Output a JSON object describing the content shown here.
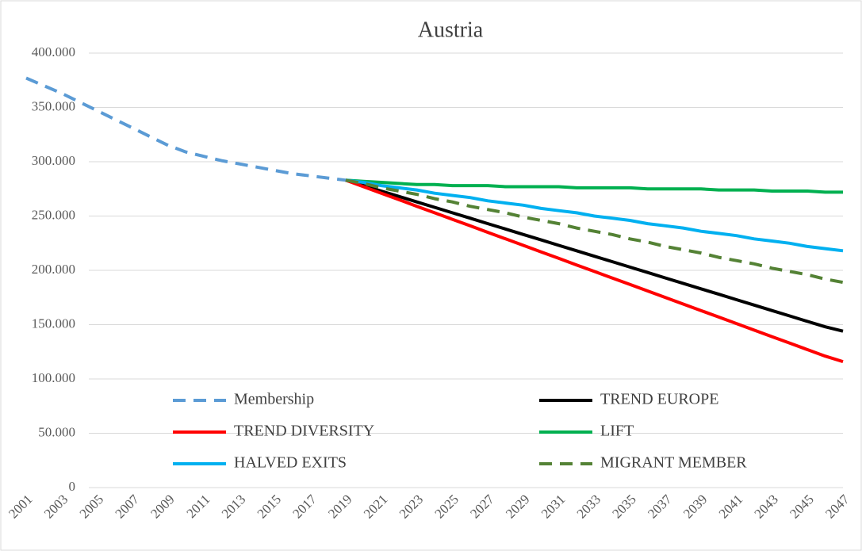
{
  "chart_data": {
    "type": "line",
    "title": "Austria",
    "categories": [
      "2001",
      null,
      "2003",
      null,
      "2005",
      null,
      "2007",
      null,
      "2009",
      null,
      "2011",
      null,
      "2013",
      null,
      "2015",
      null,
      "2017",
      null,
      "2019",
      null,
      "2021",
      null,
      "2023",
      null,
      "2025",
      null,
      "2027",
      null,
      "2029",
      null,
      "2031",
      null,
      "2033",
      null,
      "2035",
      null,
      "2037",
      null,
      "2039",
      null,
      "2041",
      null,
      "2043",
      null,
      "2045",
      null,
      "2047"
    ],
    "series": [
      {
        "name": "Membership",
        "color": "#5b9bd5",
        "dashed": true,
        "values": [
          377000,
          370000,
          363000,
          355000,
          347000,
          339000,
          331000,
          323000,
          315000,
          309000,
          305000,
          301000,
          298000,
          295000,
          292000,
          289000,
          287000,
          285000,
          283000,
          null,
          null,
          null,
          null,
          null,
          null,
          null,
          null,
          null,
          null,
          null,
          null,
          null,
          null,
          null,
          null,
          null,
          null,
          null,
          null,
          null,
          null,
          null,
          null,
          null,
          null,
          null,
          null
        ]
      },
      {
        "name": "TREND EUROPE",
        "color": "#000000",
        "dashed": false,
        "values": [
          null,
          null,
          null,
          null,
          null,
          null,
          null,
          null,
          null,
          null,
          null,
          null,
          null,
          null,
          null,
          null,
          null,
          null,
          283000,
          278000,
          273000,
          268000,
          263000,
          258000,
          253000,
          248000,
          243000,
          238000,
          233000,
          228000,
          223000,
          218000,
          213000,
          208000,
          203000,
          198000,
          193000,
          188000,
          183000,
          178000,
          173000,
          168000,
          163000,
          158000,
          153000,
          148000,
          144000
        ]
      },
      {
        "name": "TREND DIVERSITY",
        "color": "#ff0000",
        "dashed": false,
        "values": [
          null,
          null,
          null,
          null,
          null,
          null,
          null,
          null,
          null,
          null,
          null,
          null,
          null,
          null,
          null,
          null,
          null,
          null,
          283000,
          277000,
          271000,
          265000,
          259000,
          253000,
          247000,
          241000,
          235000,
          229000,
          223000,
          217000,
          211000,
          205000,
          199000,
          193000,
          187000,
          181000,
          175000,
          169000,
          163000,
          157000,
          151000,
          145000,
          139000,
          133000,
          127000,
          121000,
          116000
        ]
      },
      {
        "name": "LIFT",
        "color": "#00b050",
        "dashed": false,
        "values": [
          null,
          null,
          null,
          null,
          null,
          null,
          null,
          null,
          null,
          null,
          null,
          null,
          null,
          null,
          null,
          null,
          null,
          null,
          283000,
          282000,
          281000,
          280000,
          279000,
          279000,
          278000,
          278000,
          278000,
          277000,
          277000,
          277000,
          277000,
          276000,
          276000,
          276000,
          276000,
          275000,
          275000,
          275000,
          275000,
          274000,
          274000,
          274000,
          273000,
          273000,
          273000,
          272000,
          272000
        ]
      },
      {
        "name": "HALVED EXITS",
        "color": "#00b0f0",
        "dashed": false,
        "values": [
          null,
          null,
          null,
          null,
          null,
          null,
          null,
          null,
          null,
          null,
          null,
          null,
          null,
          null,
          null,
          null,
          null,
          null,
          283000,
          281000,
          278000,
          276000,
          274000,
          271000,
          269000,
          267000,
          264000,
          262000,
          260000,
          257000,
          255000,
          253000,
          250000,
          248000,
          246000,
          243000,
          241000,
          239000,
          236000,
          234000,
          232000,
          229000,
          227000,
          225000,
          222000,
          220000,
          218000
        ]
      },
      {
        "name": "MIGRANT MEMBER",
        "color": "#548235",
        "dashed": true,
        "values": [
          null,
          null,
          null,
          null,
          null,
          null,
          null,
          null,
          null,
          null,
          null,
          null,
          null,
          null,
          null,
          null,
          null,
          null,
          283000,
          280000,
          276000,
          273000,
          270000,
          266000,
          263000,
          259000,
          256000,
          253000,
          249000,
          246000,
          243000,
          239000,
          236000,
          233000,
          229000,
          226000,
          222000,
          219000,
          216000,
          212000,
          209000,
          206000,
          202000,
          199000,
          196000,
          192000,
          189000
        ]
      }
    ],
    "ylim": [
      0,
      400000
    ],
    "yticks": [
      0,
      {
        "value": 50000,
        "label": "50.000"
      },
      {
        "value": 100000,
        "label": "100.000"
      },
      {
        "value": 150000,
        "label": "150.000"
      },
      {
        "value": 200000,
        "label": "200.000"
      },
      {
        "value": 250000,
        "label": "250.000"
      },
      {
        "value": 300000,
        "label": "300.000"
      },
      {
        "value": 350000,
        "label": "350.000"
      },
      {
        "value": 400000,
        "label": "400.000"
      }
    ],
    "grid": true
  }
}
